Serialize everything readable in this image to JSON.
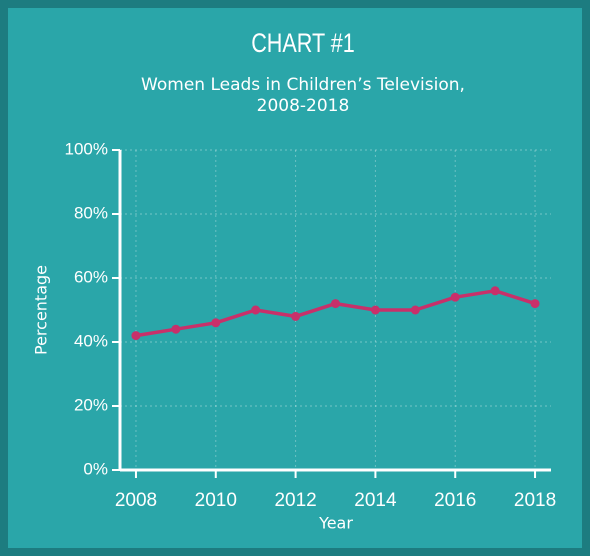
{
  "chart_data": {
    "type": "line",
    "title": "CHART #1",
    "subtitle": [
      "Women Leads in Children’s Television,",
      "2008-2018"
    ],
    "x_label": "Year",
    "y_label": "Percentage",
    "x": [
      2008,
      2009,
      2010,
      2011,
      2012,
      2013,
      2014,
      2015,
      2016,
      2017,
      2018
    ],
    "series": [
      {
        "color": "#c8306a",
        "values": [
          42,
          44,
          46,
          50,
          48,
          52,
          50,
          50,
          54,
          56,
          52
        ]
      }
    ],
    "xlim": [
      2007.6,
      2018.4
    ],
    "xticks": [
      2008,
      2010,
      2012,
      2014,
      2016,
      2018
    ],
    "ylim": [
      0,
      100
    ],
    "yticks": [
      {
        "value": 0,
        "label": "0%"
      },
      {
        "value": 20,
        "label": "20%"
      },
      {
        "value": 40,
        "label": "40%"
      },
      {
        "value": 60,
        "label": "60%"
      },
      {
        "value": 80,
        "label": "80%"
      },
      {
        "value": 100,
        "label": "100%"
      }
    ],
    "grid": true
  }
}
